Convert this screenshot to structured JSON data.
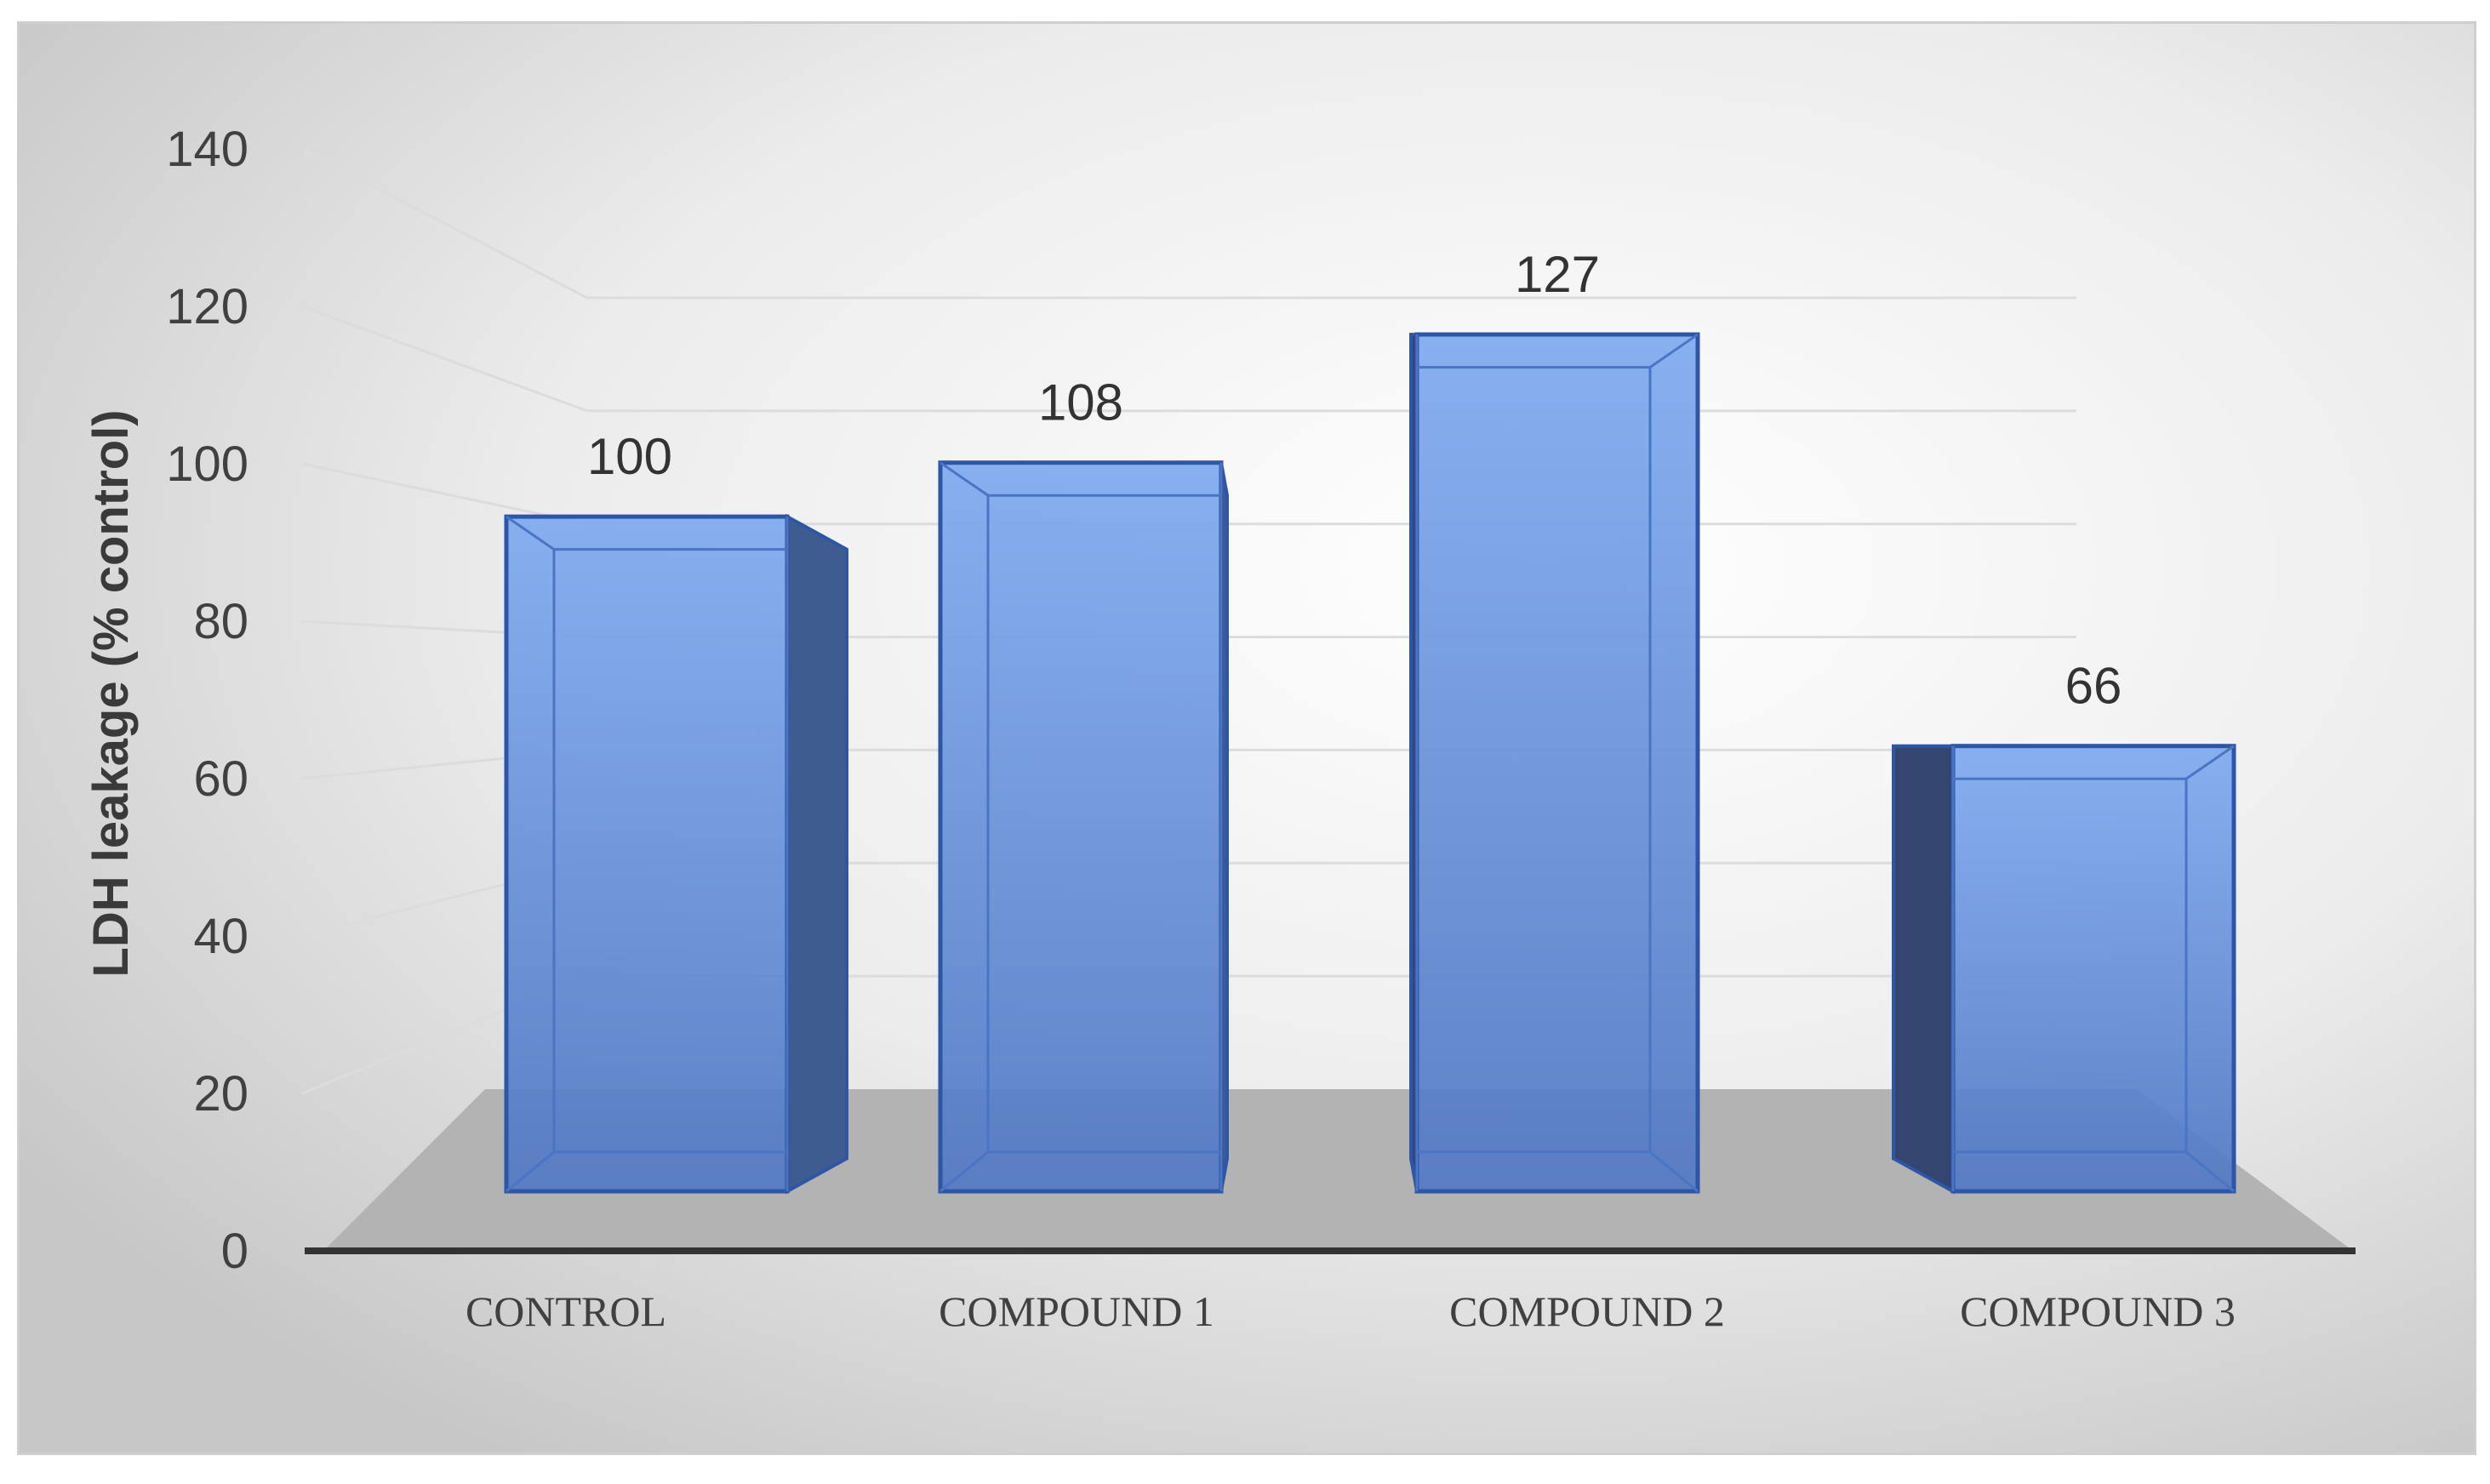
{
  "chart_data": {
    "type": "bar",
    "style": "3d-column",
    "categories": [
      "CONTROL",
      "COMPOUND 1",
      "COMPOUND 2",
      "COMPOUND 3"
    ],
    "values": [
      100,
      108,
      127,
      66
    ],
    "data_labels": [
      "100",
      "108",
      "127",
      "66"
    ],
    "title": "",
    "xlabel": "",
    "ylabel": "LDH leakage (% control)",
    "ylim": [
      0,
      140
    ],
    "yticks": [
      "0",
      "20",
      "40",
      "60",
      "80",
      "100",
      "120",
      "140"
    ],
    "grid": true,
    "legend": "none",
    "colors": {
      "bar_front": "#5b88d6",
      "bar_side": "#3f5c91",
      "bar_edge": "#2f55a6",
      "floor": "#b3b3b3",
      "background_center": "#ffffff",
      "background_edge": "#c9c9c9"
    }
  }
}
